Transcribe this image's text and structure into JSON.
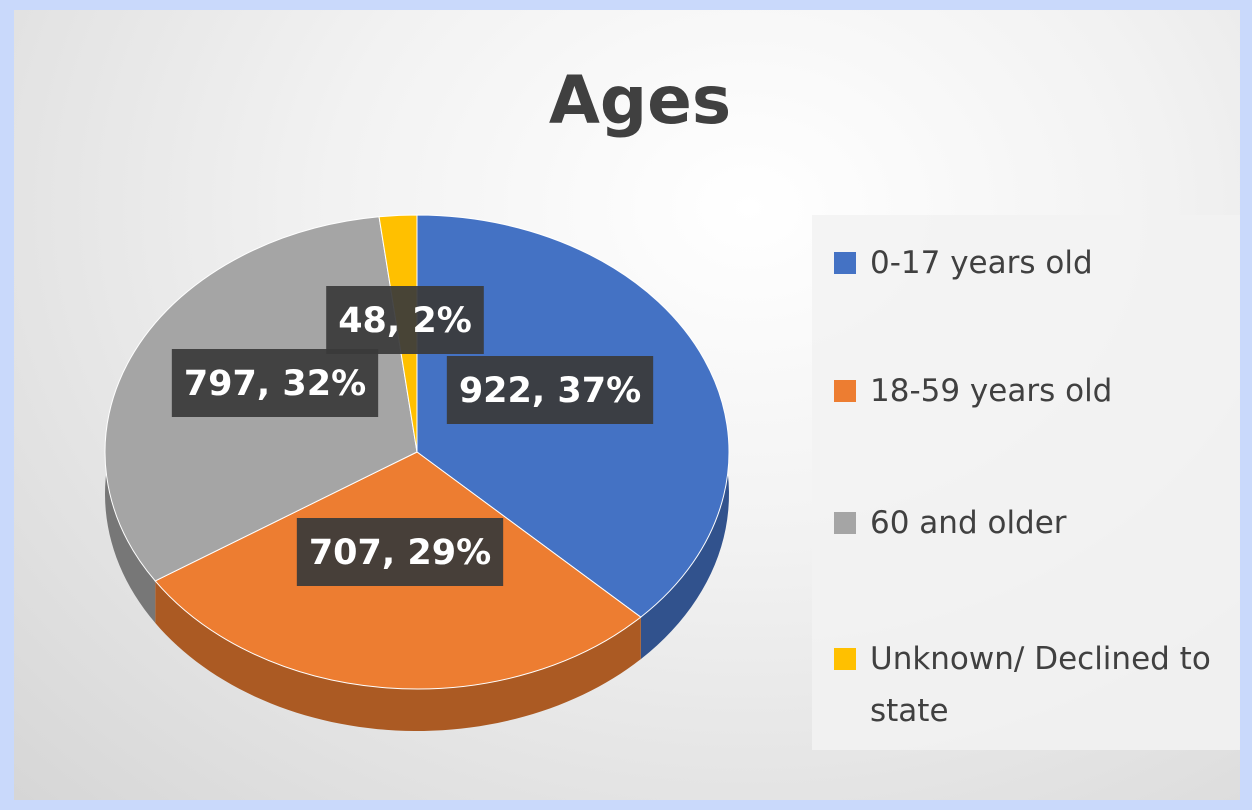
{
  "chart_data": {
    "type": "pie",
    "title": "Ages",
    "categories": [
      "0-17 years old",
      "18-59 years old",
      "60 and older",
      "Unknown/ Declined to state"
    ],
    "values": [
      922,
      707,
      797,
      48
    ],
    "value_labels": [
      "922, 37%",
      "707, 29%",
      "797, 32%",
      "48, 2%"
    ],
    "colors": [
      "#4472c4",
      "#ed7d31",
      "#a5a5a5",
      "#ffc000"
    ],
    "legend": "right"
  }
}
